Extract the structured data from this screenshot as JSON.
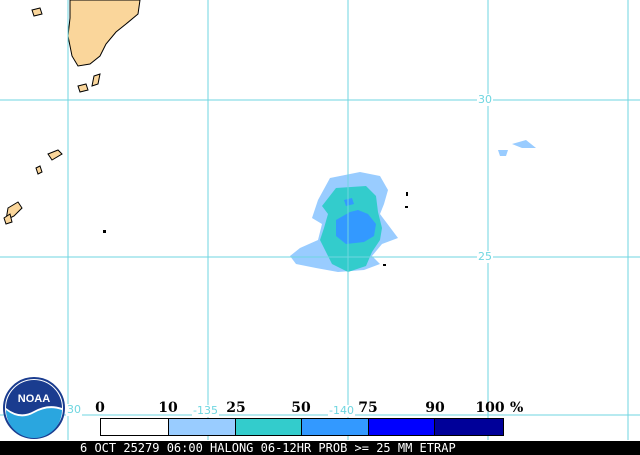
{
  "map": {
    "grid_color": "#6fd6e0",
    "land_color": "#fad69b",
    "lat_labels": [
      {
        "value": "30"
      },
      {
        "value": "25"
      }
    ],
    "lon_labels": [
      {
        "value": "30"
      },
      {
        "value": "-135"
      },
      {
        "value": "-140"
      }
    ]
  },
  "legend": {
    "ticks": [
      "0",
      "10",
      "25",
      "50",
      "75",
      "90",
      "100"
    ],
    "unit": "%",
    "colors": [
      "#ffffff",
      "#99ccff",
      "#33cccc",
      "#3399ff",
      "#0000ff",
      "#000099"
    ]
  },
  "logo": {
    "text": "NOAA"
  },
  "footer": {
    "caption": "6 OCT 25279 06:00 HALONG 06-12HR PROB >= 25 MM ETRAP"
  }
}
